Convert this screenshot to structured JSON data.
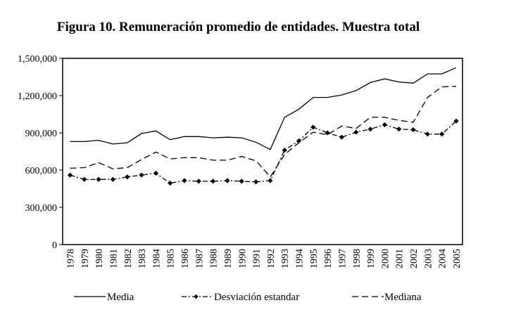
{
  "chart_data": {
    "type": "line",
    "title": "Figura 10. Remuneración promedio de entidades. Muestra total",
    "xlabel": "",
    "ylabel": "",
    "ylim": [
      0,
      1500000
    ],
    "yticks": [
      0,
      300000,
      600000,
      900000,
      1200000,
      1500000
    ],
    "ytick_labels": [
      "0",
      "300,000",
      "600,000",
      "900,000",
      "1,200,000",
      "1,500,000"
    ],
    "grid": false,
    "legend_position": "bottom",
    "x": [
      "1978",
      "1979",
      "1980",
      "1981",
      "1982",
      "1983",
      "1984",
      "1985",
      "1986",
      "1987",
      "1988",
      "1989",
      "1990",
      "1991",
      "1992",
      "1993",
      "1994",
      "1995",
      "1996",
      "1997",
      "1998",
      "1999",
      "2000",
      "2001",
      "2002",
      "2003",
      "2004",
      "2005"
    ],
    "series": [
      {
        "name": "Media",
        "style": "solid",
        "values": [
          830000,
          830000,
          840000,
          810000,
          820000,
          895000,
          915000,
          845000,
          870000,
          870000,
          860000,
          865000,
          860000,
          825000,
          765000,
          1025000,
          1090000,
          1185000,
          1185000,
          1205000,
          1240000,
          1305000,
          1335000,
          1310000,
          1300000,
          1375000,
          1375000,
          1425000
        ]
      },
      {
        "name": "Desviación estandar",
        "style": "dash-dot-diamond",
        "values": [
          560000,
          525000,
          525000,
          525000,
          545000,
          560000,
          575000,
          495000,
          515000,
          510000,
          510000,
          515000,
          510000,
          505000,
          515000,
          760000,
          835000,
          945000,
          900000,
          865000,
          905000,
          930000,
          965000,
          930000,
          925000,
          890000,
          890000,
          995000
        ]
      },
      {
        "name": "Mediana",
        "style": "dashed",
        "values": [
          615000,
          620000,
          660000,
          610000,
          620000,
          685000,
          745000,
          690000,
          700000,
          700000,
          680000,
          680000,
          710000,
          675000,
          545000,
          725000,
          820000,
          905000,
          885000,
          955000,
          935000,
          1025000,
          1025000,
          1000000,
          985000,
          1185000,
          1270000,
          1275000
        ]
      }
    ]
  },
  "colors": {
    "line": "#000000",
    "background": "#ffffff"
  }
}
